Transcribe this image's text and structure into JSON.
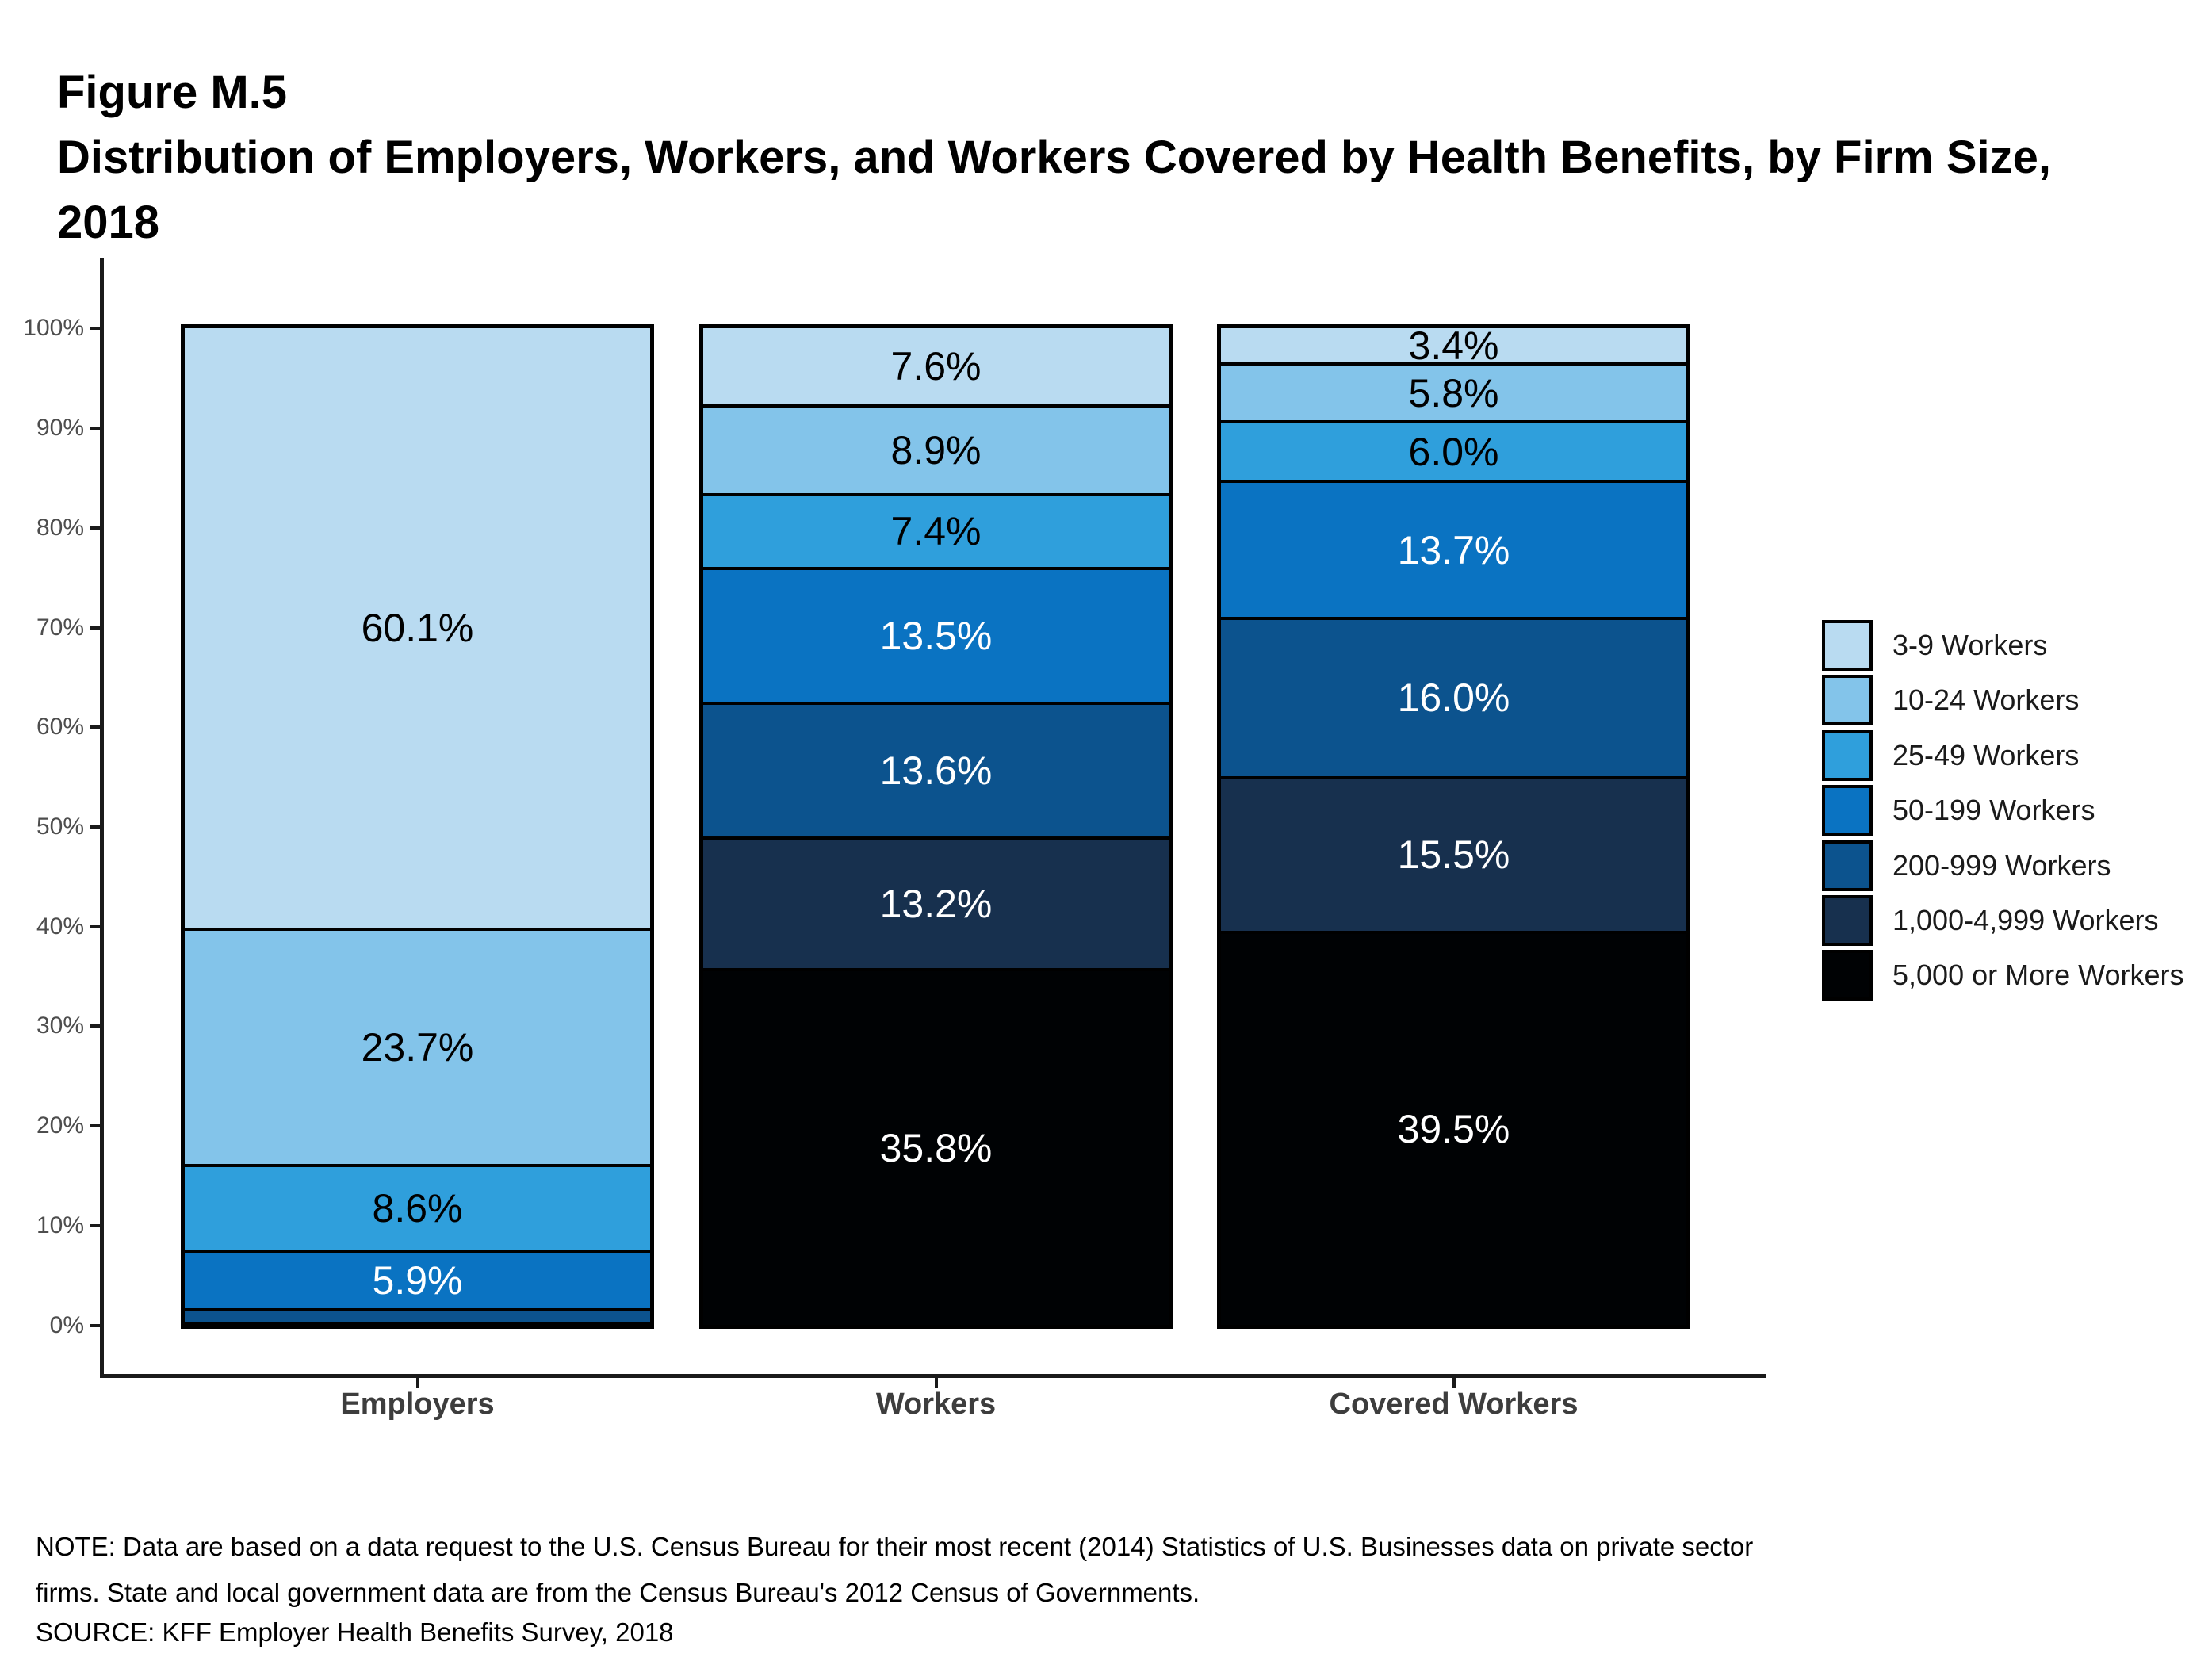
{
  "title": {
    "figure_number": "Figure M.5",
    "line1": "Distribution of Employers, Workers, and Workers Covered by Health Benefits, by Firm Size,",
    "line2": "2018"
  },
  "note": {
    "line1": "NOTE: Data are based on a data request to the U.S. Census Bureau for their most recent (2014) Statistics of U.S. Businesses data on private sector",
    "line2": "firms. State and local government data are from the Census Bureau's 2012 Census of Governments.",
    "line3": "SOURCE: KFF Employer Health Benefits Survey, 2018"
  },
  "chart_data": {
    "type": "stacked_bar",
    "stacking": "percent",
    "title": "Distribution of Employers, Workers, and Workers Covered by Health Benefits, by Firm Size, 2018",
    "categories": [
      "Employers",
      "Workers",
      "Covered Workers"
    ],
    "y_axis": {
      "min": 0,
      "max": 100,
      "tick_step": 10,
      "tick_labels": [
        "0%",
        "10%",
        "20%",
        "30%",
        "40%",
        "50%",
        "60%",
        "70%",
        "80%",
        "90%",
        "100%"
      ]
    },
    "grid": false,
    "legend_position": "right",
    "label_format": "{value}%",
    "min_label_value": 2,
    "series": [
      {
        "name": "3-9 Workers",
        "color": "#B9DBF1",
        "label_color": "#000000",
        "values": [
          60.1,
          7.6,
          3.4
        ]
      },
      {
        "name": "10-24 Workers",
        "color": "#83C4EA",
        "label_color": "#000000",
        "values": [
          23.7,
          8.9,
          5.8
        ]
      },
      {
        "name": "25-49 Workers",
        "color": "#2F9FDC",
        "label_color": "#000000",
        "values": [
          8.6,
          7.4,
          6.0
        ]
      },
      {
        "name": "50-199 Workers",
        "color": "#0A73C2",
        "label_color": "#FFFFFF",
        "values": [
          5.9,
          13.5,
          13.7
        ]
      },
      {
        "name": "200-999 Workers",
        "color": "#0C538E",
        "label_color": "#FFFFFF",
        "values": [
          1.4,
          13.6,
          16.0
        ]
      },
      {
        "name": "1,000-4,999 Workers",
        "color": "#17304E",
        "label_color": "#FFFFFF",
        "values": [
          0.2,
          13.2,
          15.5
        ]
      },
      {
        "name": "5,000 or More Workers",
        "color": "#000204",
        "label_color": "#FFFFFF",
        "values": [
          0.1,
          35.8,
          39.5
        ]
      }
    ]
  }
}
